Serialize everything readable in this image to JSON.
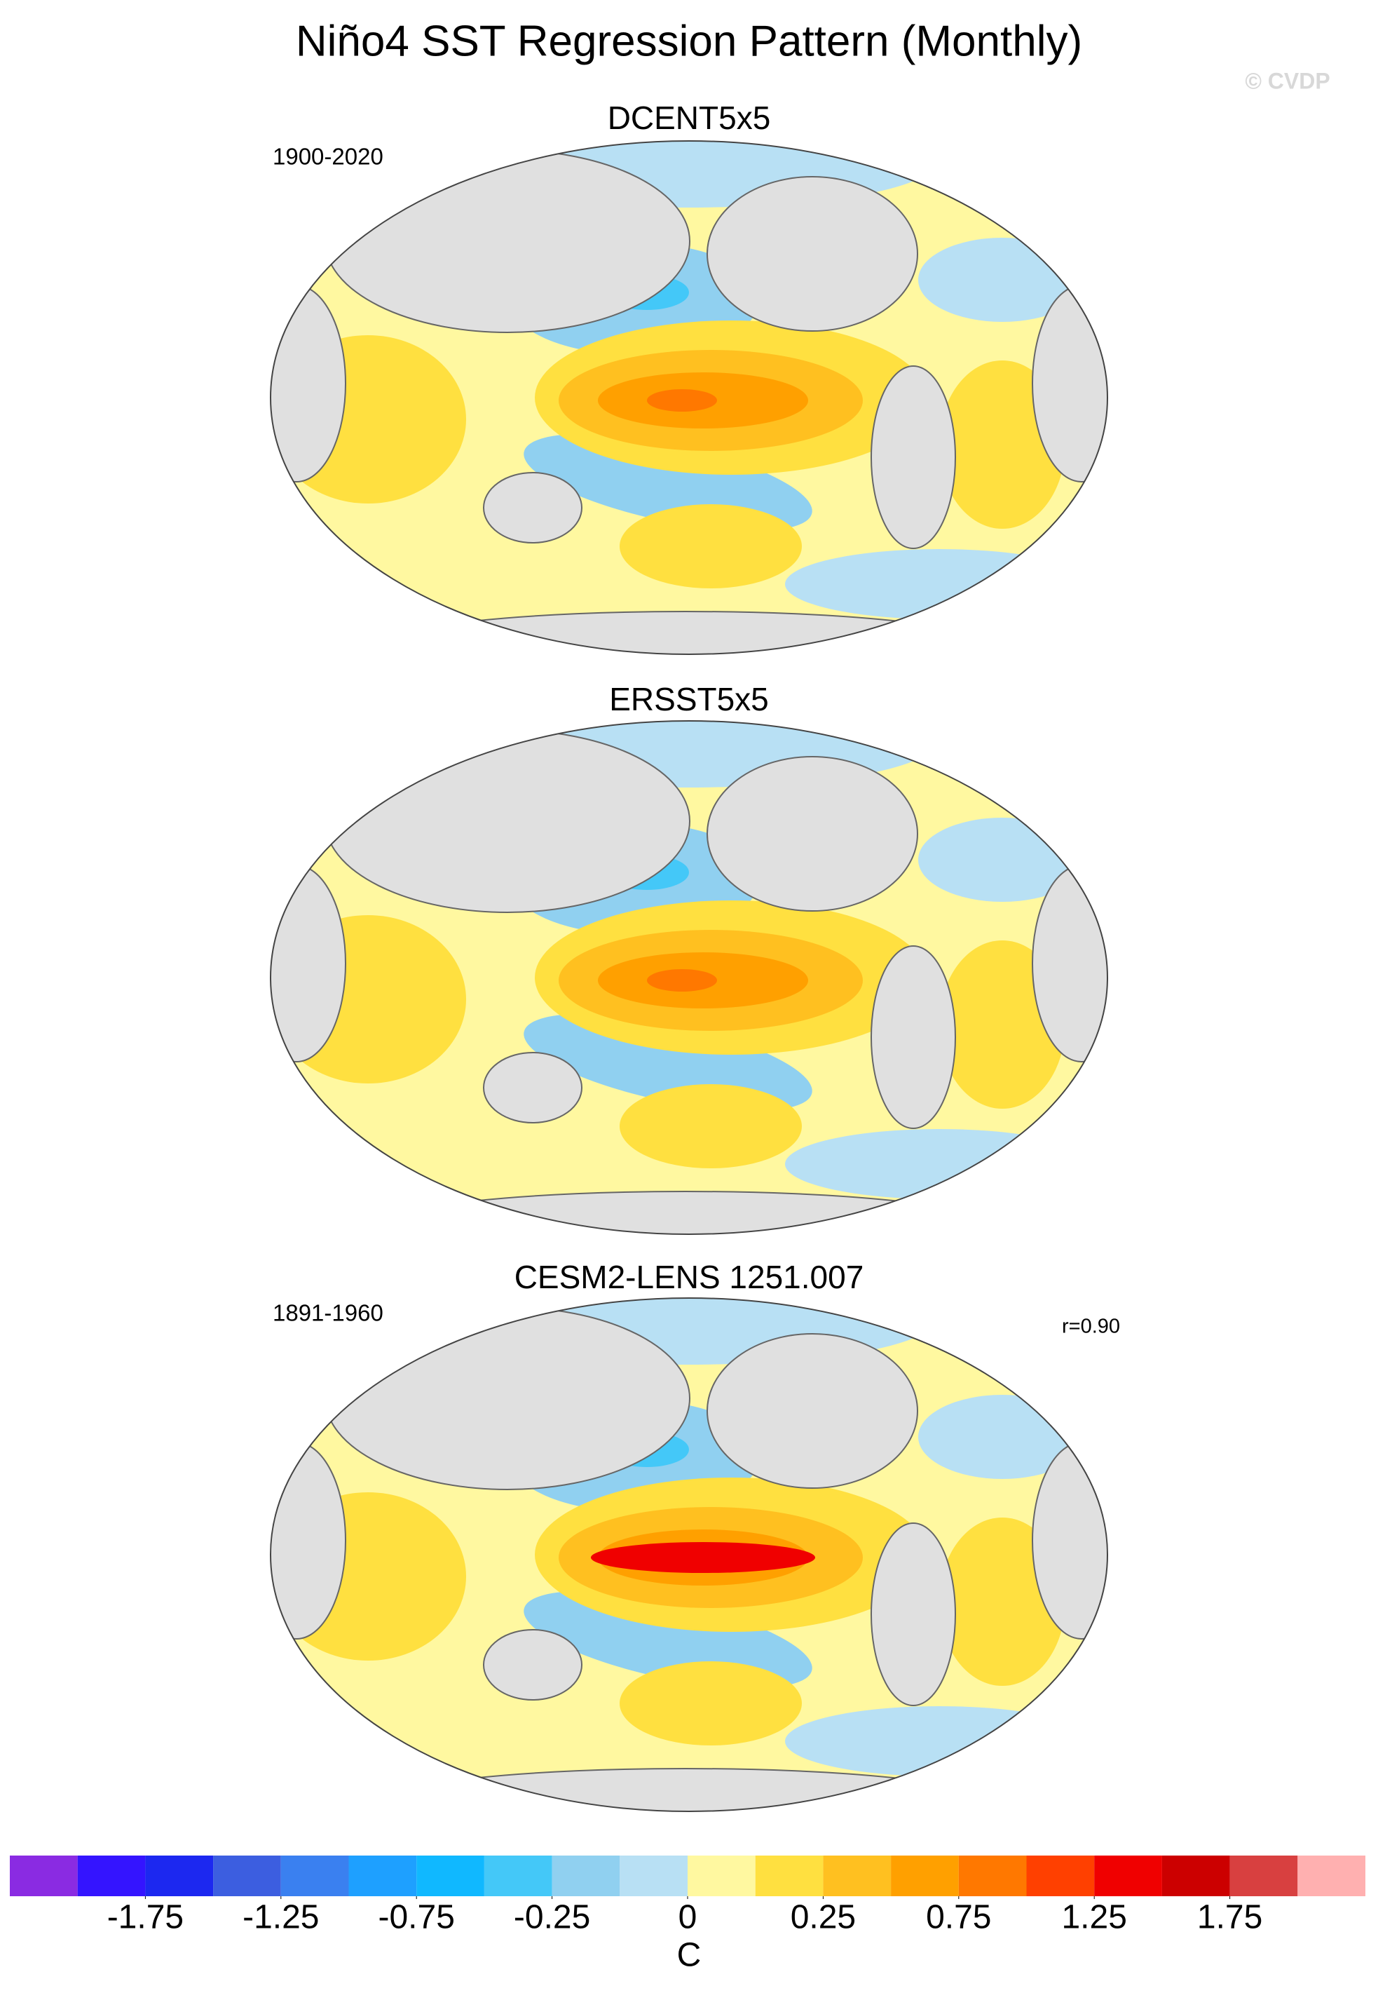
{
  "title": "Niño4 SST Regression Pattern (Monthly)",
  "credit": "© CVDP",
  "panels": [
    {
      "title": "DCENT5x5",
      "period": "1900-2020"
    },
    {
      "title": "ERSST5x5"
    },
    {
      "title": "CESM2-LENS 1251.007",
      "period": "1891-1960",
      "stat": "r=0.90"
    }
  ],
  "colorbar": {
    "levels": [
      -2,
      -1.75,
      -1.5,
      -1.25,
      -1,
      -0.75,
      -0.5,
      -0.25,
      -0.1,
      0,
      0.1,
      0.25,
      0.5,
      0.75,
      1,
      1.25,
      1.5,
      1.75,
      2
    ],
    "colors": [
      "#8a2be2",
      "#3414ff",
      "#1c28f0",
      "#3c5ee0",
      "#3a80f0",
      "#1ea0ff",
      "#10b8ff",
      "#44c8f8",
      "#90d0f0",
      "#b8e0f4",
      "#fff8a0",
      "#ffe040",
      "#ffc020",
      "#ffa000",
      "#ff7800",
      "#ff4000",
      "#f00000",
      "#cc0000",
      "#d84040",
      "#ffb0b0"
    ],
    "ticks": [
      -1.75,
      -1.25,
      -0.75,
      -0.25,
      0,
      0.25,
      0.75,
      1.25,
      1.75
    ],
    "label": "C"
  }
}
